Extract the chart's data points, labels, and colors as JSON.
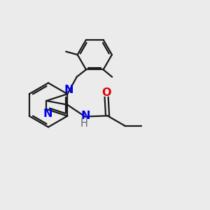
{
  "bg_color": "#ebebeb",
  "bond_color": "#1a1a1a",
  "n_color": "#0000ee",
  "o_color": "#dd0000",
  "lw": 1.6,
  "fs": 10.5,
  "xlim": [
    0,
    10
  ],
  "ylim": [
    0,
    10
  ]
}
